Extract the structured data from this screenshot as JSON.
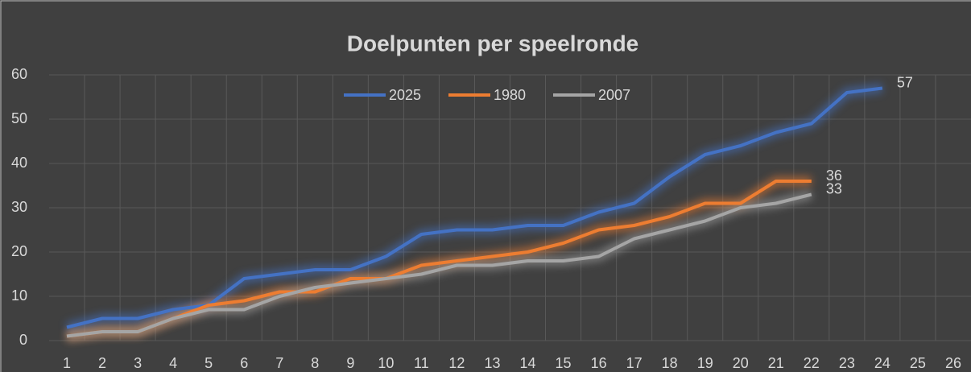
{
  "chart_data": {
    "type": "line",
    "title": "Doelpunten per speelronde",
    "categories": [
      "1",
      "2",
      "3",
      "4",
      "5",
      "6",
      "7",
      "8",
      "9",
      "10",
      "11",
      "12",
      "13",
      "14",
      "15",
      "16",
      "17",
      "18",
      "19",
      "20",
      "21",
      "22",
      "23",
      "24",
      "25",
      "26"
    ],
    "series": [
      {
        "name": "2025",
        "color": "#4472c4",
        "values": [
          3,
          5,
          5,
          7,
          8,
          14,
          15,
          16,
          16,
          19,
          24,
          25,
          25,
          26,
          26,
          29,
          31,
          37,
          42,
          44,
          47,
          49,
          56,
          57,
          null,
          null
        ]
      },
      {
        "name": "1980",
        "color": "#ed7d31",
        "values": [
          1,
          2,
          2,
          5,
          8,
          9,
          11,
          11,
          14,
          14,
          17,
          18,
          19,
          20,
          22,
          25,
          26,
          28,
          31,
          31,
          36,
          36,
          null,
          null,
          null,
          null
        ]
      },
      {
        "name": "2007",
        "color": "#a5a5a5",
        "values": [
          1,
          2,
          2,
          5,
          7,
          7,
          10,
          12,
          13,
          14,
          15,
          17,
          17,
          18,
          18,
          19,
          23,
          25,
          27,
          30,
          31,
          33,
          null,
          null,
          null,
          null
        ]
      }
    ],
    "ylim": [
      0,
      60
    ],
    "yticks": [
      0,
      10,
      20,
      30,
      40,
      50,
      60
    ],
    "grid": true,
    "legend": "top",
    "data_label_last": true
  }
}
